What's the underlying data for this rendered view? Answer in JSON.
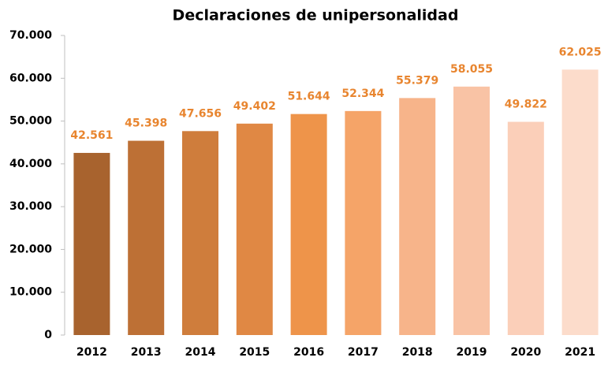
{
  "chart_data": {
    "type": "bar",
    "title": "Declaraciones de unipersonalidad",
    "categories": [
      "2012",
      "2013",
      "2014",
      "2015",
      "2016",
      "2017",
      "2018",
      "2019",
      "2020",
      "2021"
    ],
    "values": [
      42561,
      45398,
      47656,
      49402,
      51644,
      52344,
      55379,
      58055,
      49822,
      62025
    ],
    "value_labels": [
      "42.561",
      "45.398",
      "47.656",
      "49.402",
      "51.644",
      "52.344",
      "55.379",
      "58.055",
      "49.822",
      "62.025"
    ],
    "colors": [
      "#a8632e",
      "#bd7035",
      "#cf7d3c",
      "#e08844",
      "#ee944a",
      "#f5a468",
      "#f7b48a",
      "#f9c3a5",
      "#fbcfb9",
      "#fcdccb"
    ],
    "label_color": "#e8852f",
    "ylim": [
      0,
      70000
    ],
    "yticks": [
      {
        "value": 0,
        "label": "0"
      },
      {
        "value": 10000,
        "label": "10.000"
      },
      {
        "value": 20000,
        "label": "20.000"
      },
      {
        "value": 30000,
        "label": "30.000"
      },
      {
        "value": 40000,
        "label": "40.000"
      },
      {
        "value": 50000,
        "label": "50.000"
      },
      {
        "value": 60000,
        "label": "60.000"
      },
      {
        "value": 70000,
        "label": "70.000"
      }
    ],
    "grid": false
  }
}
